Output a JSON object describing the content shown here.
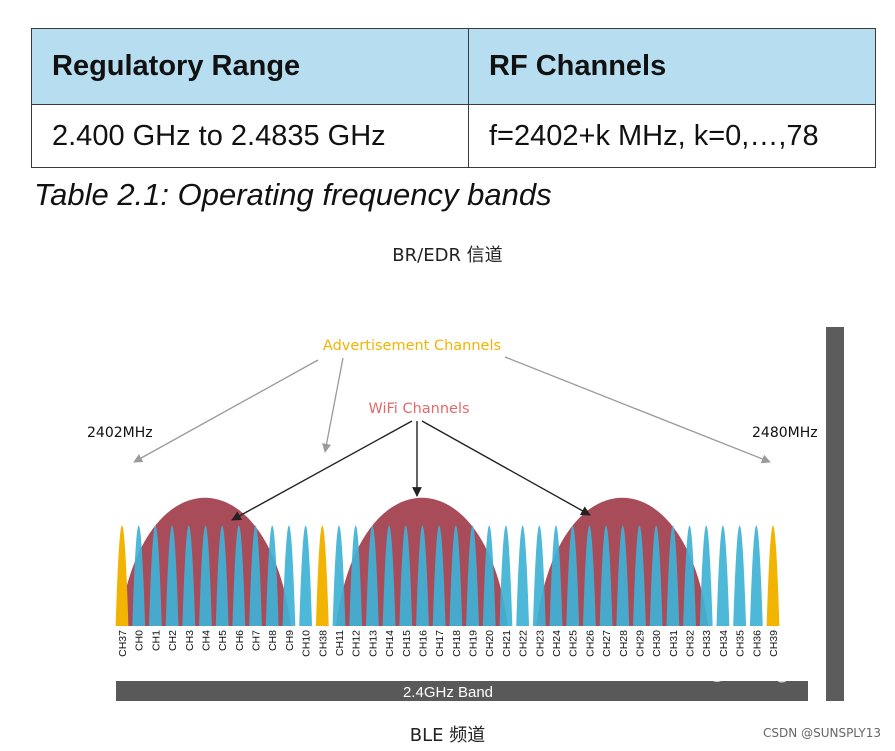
{
  "table": {
    "headers": [
      "Regulatory Range",
      "RF Channels"
    ],
    "row": [
      "2.400 GHz to 2.4835 GHz",
      "f=2402+k MHz, k=0,…,78"
    ],
    "caption": "Table 2.1:  Operating frequency bands"
  },
  "captions": {
    "top": "BR/EDR 信道",
    "bottom": "BLE 频道"
  },
  "diagram": {
    "advertisement_label": "Advertisement Channels",
    "wifi_label": "WiFi Channels",
    "start_freq": "2402MHz",
    "end_freq": "2480MHz",
    "band_label": "2.4GHz Band",
    "watermark_overlay": "知乎 @RFSight",
    "channels": [
      "CH37",
      "CH0",
      "CH1",
      "CH2",
      "CH3",
      "CH4",
      "CH5",
      "CH6",
      "CH7",
      "CH8",
      "CH9",
      "CH10",
      "CH38",
      "CH11",
      "CH12",
      "CH13",
      "CH14",
      "CH15",
      "CH16",
      "CH17",
      "CH18",
      "CH19",
      "CH20",
      "CH21",
      "CH22",
      "CH23",
      "CH24",
      "CH25",
      "CH26",
      "CH27",
      "CH28",
      "CH29",
      "CH30",
      "CH31",
      "CH32",
      "CH33",
      "CH34",
      "CH35",
      "CH36",
      "CH39"
    ],
    "advertising_channels": [
      "CH37",
      "CH38",
      "CH39"
    ],
    "wifi_center_channels": [
      "CH4",
      "CH16",
      "CH28"
    ],
    "colors": {
      "data_channel": "#3fb2d6",
      "advertising_channel": "#f2b400",
      "wifi": "#a84c5a",
      "label_gold": "#f2b400",
      "label_wifi": "#e46a6a",
      "band_bar": "#595959",
      "side_bar": "#5c5c5c"
    }
  },
  "watermark": "CSDN @SUNSPLY13"
}
